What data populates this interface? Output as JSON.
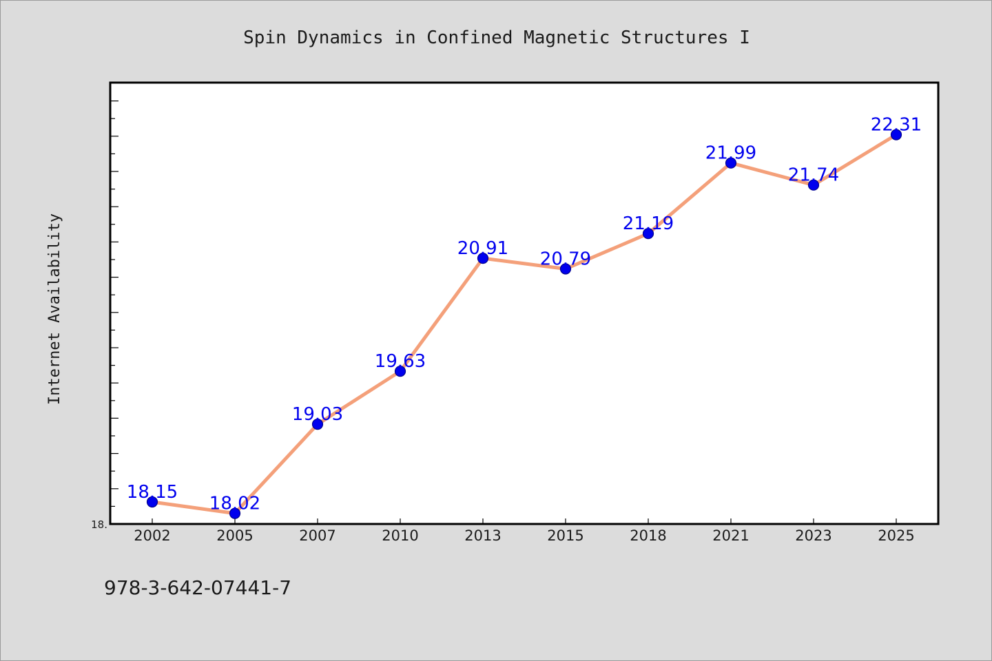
{
  "chart_data": {
    "type": "line",
    "title": "Spin Dynamics in Confined Magnetic Structures I",
    "ylabel": "Internet Availability",
    "xlabel": "",
    "categories": [
      "2002",
      "2005",
      "2007",
      "2010",
      "2013",
      "2015",
      "2018",
      "2021",
      "2023",
      "2025"
    ],
    "series": [
      {
        "values": [
          18.15,
          18.02,
          19.03,
          19.63,
          20.91,
          20.79,
          21.19,
          21.99,
          21.74,
          22.31
        ]
      }
    ],
    "value_labels": [
      "18.15",
      "18.02",
      "19.03",
      "19.63",
      "20.91",
      "20.79",
      "21.19",
      "21.99",
      "21.74",
      "22.31"
    ],
    "y_tick_labels": [
      "18."
    ],
    "ylim": [
      17.9,
      22.9
    ],
    "grid": false,
    "legend": "none",
    "colors": {
      "line": "#f4a07a",
      "marker": "#0000ee",
      "value_label": "#0000ee",
      "background": "#dcdcdc",
      "plot_area": "#ffffff"
    }
  },
  "footer": {
    "isbn": "978-3-642-07441-7"
  }
}
